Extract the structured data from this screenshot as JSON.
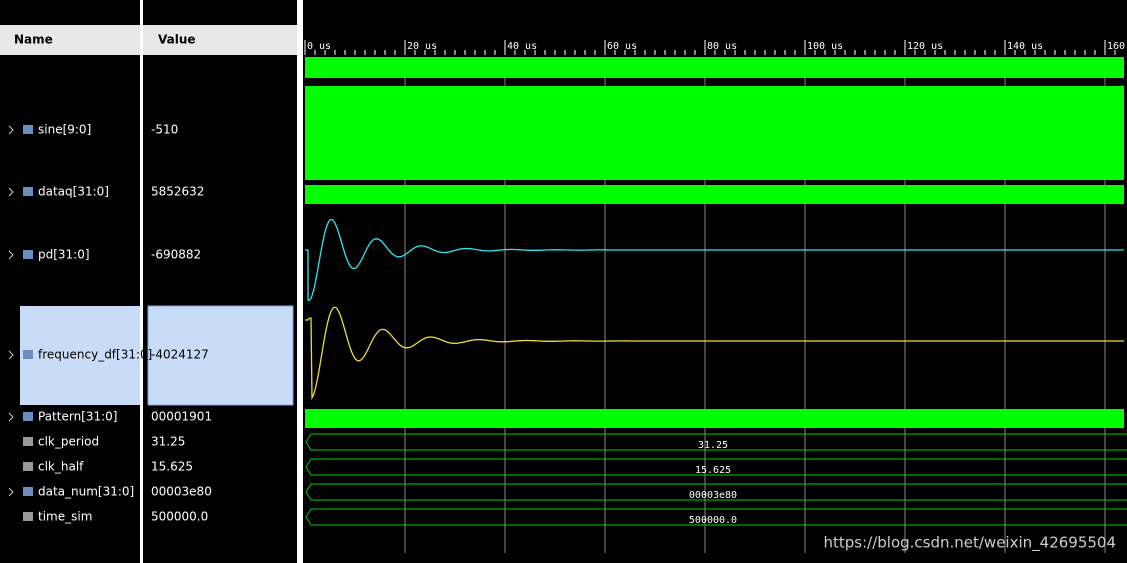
{
  "columns": {
    "name": "Name",
    "value": "Value"
  },
  "signals": [
    {
      "name": "sine[9:0]",
      "value": "-510"
    },
    {
      "name": "dataq[31:0]",
      "value": "5852632"
    },
    {
      "name": "pd[31:0]",
      "value": "-690882"
    },
    {
      "name": "frequency_df[31:0]",
      "value": "-4024127"
    },
    {
      "name": "Pattern[31:0]",
      "value": "00001901"
    },
    {
      "name": "clk_period",
      "value": "31.25"
    },
    {
      "name": "clk_half",
      "value": "15.625"
    },
    {
      "name": "data_num[31:0]",
      "value": "00003e80"
    },
    {
      "name": "time_sim",
      "value": "500000.0"
    }
  ],
  "timeline": [
    "0 us",
    "20 us",
    "40 us",
    "60 us",
    "80 us",
    "100 us",
    "120 us",
    "140 us",
    "160"
  ],
  "watermark": "https://blog.csdn.net/weixin_42695504"
}
